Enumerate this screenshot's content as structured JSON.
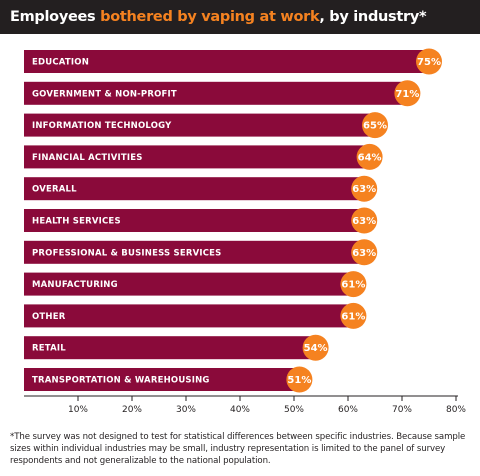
{
  "header": {
    "title_prefix": "Employees ",
    "title_highlight": "bothered by vaping at work",
    "title_suffix": ", by industry*"
  },
  "colors": {
    "bar": "#8a0a3a",
    "marker": "#f58220",
    "title_bg": "#231f20",
    "highlight": "#f58220"
  },
  "chart_data": {
    "type": "bar",
    "orientation": "horizontal",
    "title": "Employees bothered by vaping at work, by industry*",
    "categories": [
      "EDUCATION",
      "GOVERNMENT & NON-PROFIT",
      "INFORMATION TECHNOLOGY",
      "FINANCIAL ACTIVITIES",
      "OVERALL",
      "HEALTH SERVICES",
      "PROFESSIONAL & BUSINESS SERVICES",
      "MANUFACTURING",
      "OTHER",
      "RETAIL",
      "TRANSPORTATION & WAREHOUSING"
    ],
    "values": [
      75,
      71,
      65,
      64,
      63,
      63,
      63,
      61,
      61,
      54,
      51
    ],
    "value_labels": [
      "75%",
      "71%",
      "65%",
      "64%",
      "63%",
      "63%",
      "63%",
      "61%",
      "61%",
      "54%",
      "51%"
    ],
    "xlim": [
      0,
      80
    ],
    "xticks": [
      10,
      20,
      30,
      40,
      50,
      60,
      70,
      80
    ],
    "xtick_labels": [
      "10%",
      "20%",
      "30%",
      "40%",
      "50%",
      "60%",
      "70%",
      "80%"
    ],
    "grid": false,
    "legend": "none"
  },
  "footnote": "*The survey was not designed to test for statistical differences between specific industries. Because sample sizes within individual industries may be small, industry representation is limited to the panel of survey respondents and not generalizable to the national population."
}
